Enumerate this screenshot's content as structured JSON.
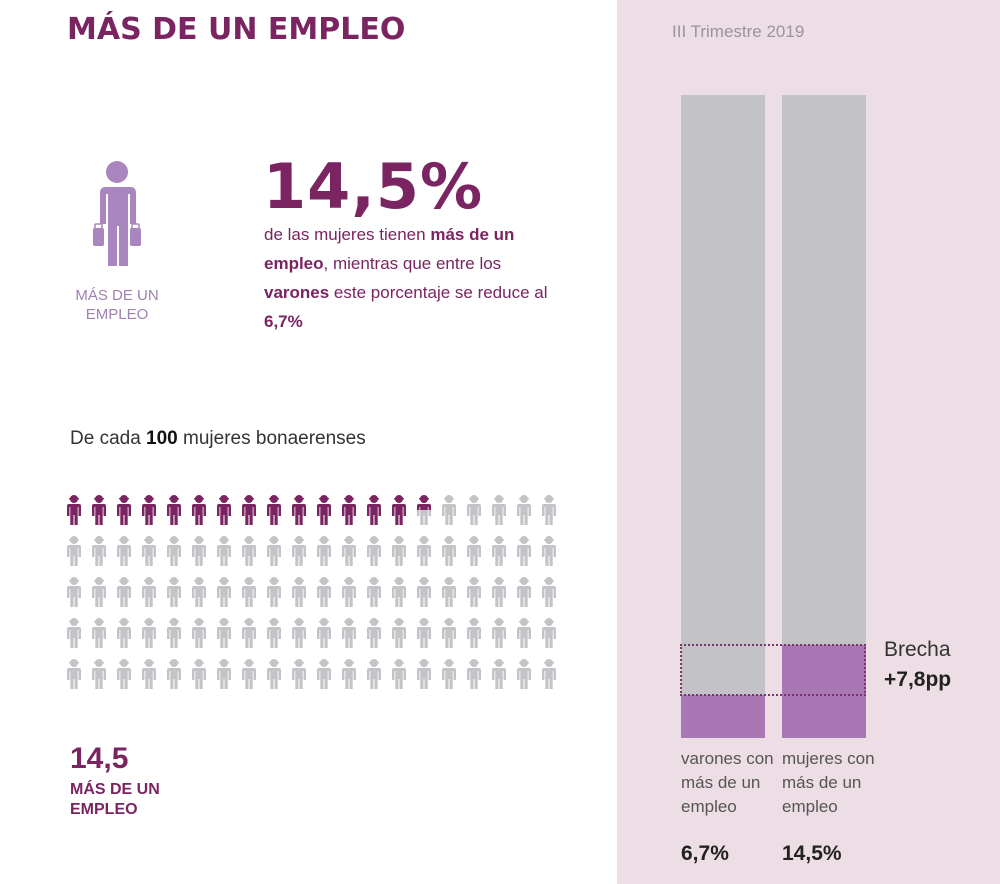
{
  "header": {
    "title": "MÁS DE UN EMPLEO"
  },
  "hero": {
    "icon": "person-with-two-briefcases-icon",
    "caption": "MÁS DE UN EMPLEO",
    "big_number": "14,5%",
    "description_parts": [
      {
        "text": "de las mujeres tienen ",
        "bold": false
      },
      {
        "text": "más de un empleo",
        "bold": true
      },
      {
        "text": ", mientras que entre los ",
        "bold": false
      },
      {
        "text": "varones",
        "bold": true
      },
      {
        "text": " este porcentaje se reduce al ",
        "bold": false
      },
      {
        "text": "6,7%",
        "bold": true
      }
    ]
  },
  "pictogram": {
    "intro_prefix": "De cada ",
    "intro_bold": "100",
    "intro_suffix": " mujeres bonaerenses",
    "total": 100,
    "columns": 20,
    "highlighted": 14.5,
    "highlight_color": "#7a2462",
    "base_color": "#c4c4c8",
    "icon": "person-icon",
    "summary_value": "14,5",
    "summary_label": "MÁS DE UN EMPLEO"
  },
  "chart_data": {
    "type": "bar",
    "title": "III Trimestre 2019",
    "categories": [
      "varones con más de un empleo",
      "mujeres con más de un empleo"
    ],
    "category_labels": [
      "varones con más de un empleo",
      "mujeres con más de un empleo"
    ],
    "values": [
      6.7,
      14.5
    ],
    "value_labels": [
      "6,7%",
      "14,5%"
    ],
    "ylim": [
      0,
      100
    ],
    "unit": "%",
    "colors": {
      "filled": "#a978b4",
      "background": "#c3c3c7",
      "panel": "#eddde5"
    },
    "annotation": {
      "label": "Brecha",
      "value": "+7,8pp",
      "from": 6.7,
      "to": 14.5
    }
  }
}
